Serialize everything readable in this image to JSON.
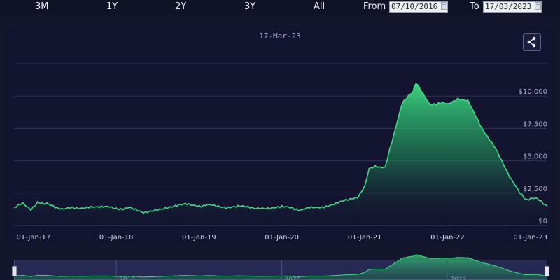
{
  "range_selector": {
    "buttons": [
      "3M",
      "1Y",
      "2Y",
      "3Y",
      "All"
    ],
    "from_label": "From",
    "from_value": "07/10/2016",
    "to_label": "To",
    "to_value": "17/03/2023"
  },
  "chart_date": "17-Mar-23",
  "colors": {
    "line": "#3ddc84",
    "area_top": "#3ddc84",
    "background": "#131530"
  },
  "icons": {
    "share": "share-icon",
    "calendar": "calendar-icon"
  },
  "chart_data": {
    "type": "area",
    "x_ticks": [
      "01-Jan-17",
      "01-Jan-18",
      "01-Jan-19",
      "01-Jan-20",
      "01-Jan-21",
      "01-Jan-22",
      "01-Jan-23"
    ],
    "y_ticks": [
      "$0",
      "$2,500",
      "$5,000",
      "$7,500",
      "$10,000"
    ],
    "ylim": [
      0,
      12500
    ],
    "xlim": [
      "2016-10-07",
      "2023-03-17"
    ],
    "grid": true,
    "series": [
      {
        "points": [
          [
            "2016-10-07",
            1400
          ],
          [
            "2016-11-15",
            1700
          ],
          [
            "2016-12-20",
            1250
          ],
          [
            "2017-01-20",
            1750
          ],
          [
            "2017-03-01",
            1700
          ],
          [
            "2017-04-15",
            1300
          ],
          [
            "2017-07-01",
            1350
          ],
          [
            "2017-10-01",
            1400
          ],
          [
            "2017-12-01",
            1500
          ],
          [
            "2018-01-01",
            1250
          ],
          [
            "2018-03-01",
            1350
          ],
          [
            "2018-05-01",
            1000
          ],
          [
            "2018-07-01",
            1250
          ],
          [
            "2018-09-01",
            1400
          ],
          [
            "2018-11-01",
            1650
          ],
          [
            "2019-01-01",
            1500
          ],
          [
            "2019-03-01",
            1600
          ],
          [
            "2019-05-01",
            1400
          ],
          [
            "2019-07-01",
            1500
          ],
          [
            "2019-09-01",
            1300
          ],
          [
            "2019-11-01",
            1350
          ],
          [
            "2020-01-01",
            1500
          ],
          [
            "2020-03-15",
            1200
          ],
          [
            "2020-05-01",
            1350
          ],
          [
            "2020-08-01",
            1500
          ],
          [
            "2020-10-01",
            1900
          ],
          [
            "2020-12-01",
            2200
          ],
          [
            "2021-01-01",
            3000
          ],
          [
            "2021-01-20",
            4400
          ],
          [
            "2021-02-15",
            4600
          ],
          [
            "2021-04-01",
            4500
          ],
          [
            "2021-05-01",
            6500
          ],
          [
            "2021-06-15",
            9500
          ],
          [
            "2021-08-01",
            10300
          ],
          [
            "2021-08-15",
            11000
          ],
          [
            "2021-09-15",
            10200
          ],
          [
            "2021-10-15",
            9300
          ],
          [
            "2021-12-01",
            9500
          ],
          [
            "2022-01-01",
            9400
          ],
          [
            "2022-02-15",
            9800
          ],
          [
            "2022-04-01",
            9600
          ],
          [
            "2022-06-01",
            7500
          ],
          [
            "2022-08-01",
            6000
          ],
          [
            "2022-10-01",
            3800
          ],
          [
            "2022-11-15",
            2500
          ],
          [
            "2022-12-15",
            2000
          ],
          [
            "2023-02-01",
            2100
          ],
          [
            "2023-03-17",
            1500
          ]
        ]
      }
    ],
    "navigator_years": [
      "2018",
      "2020",
      "2022"
    ]
  }
}
